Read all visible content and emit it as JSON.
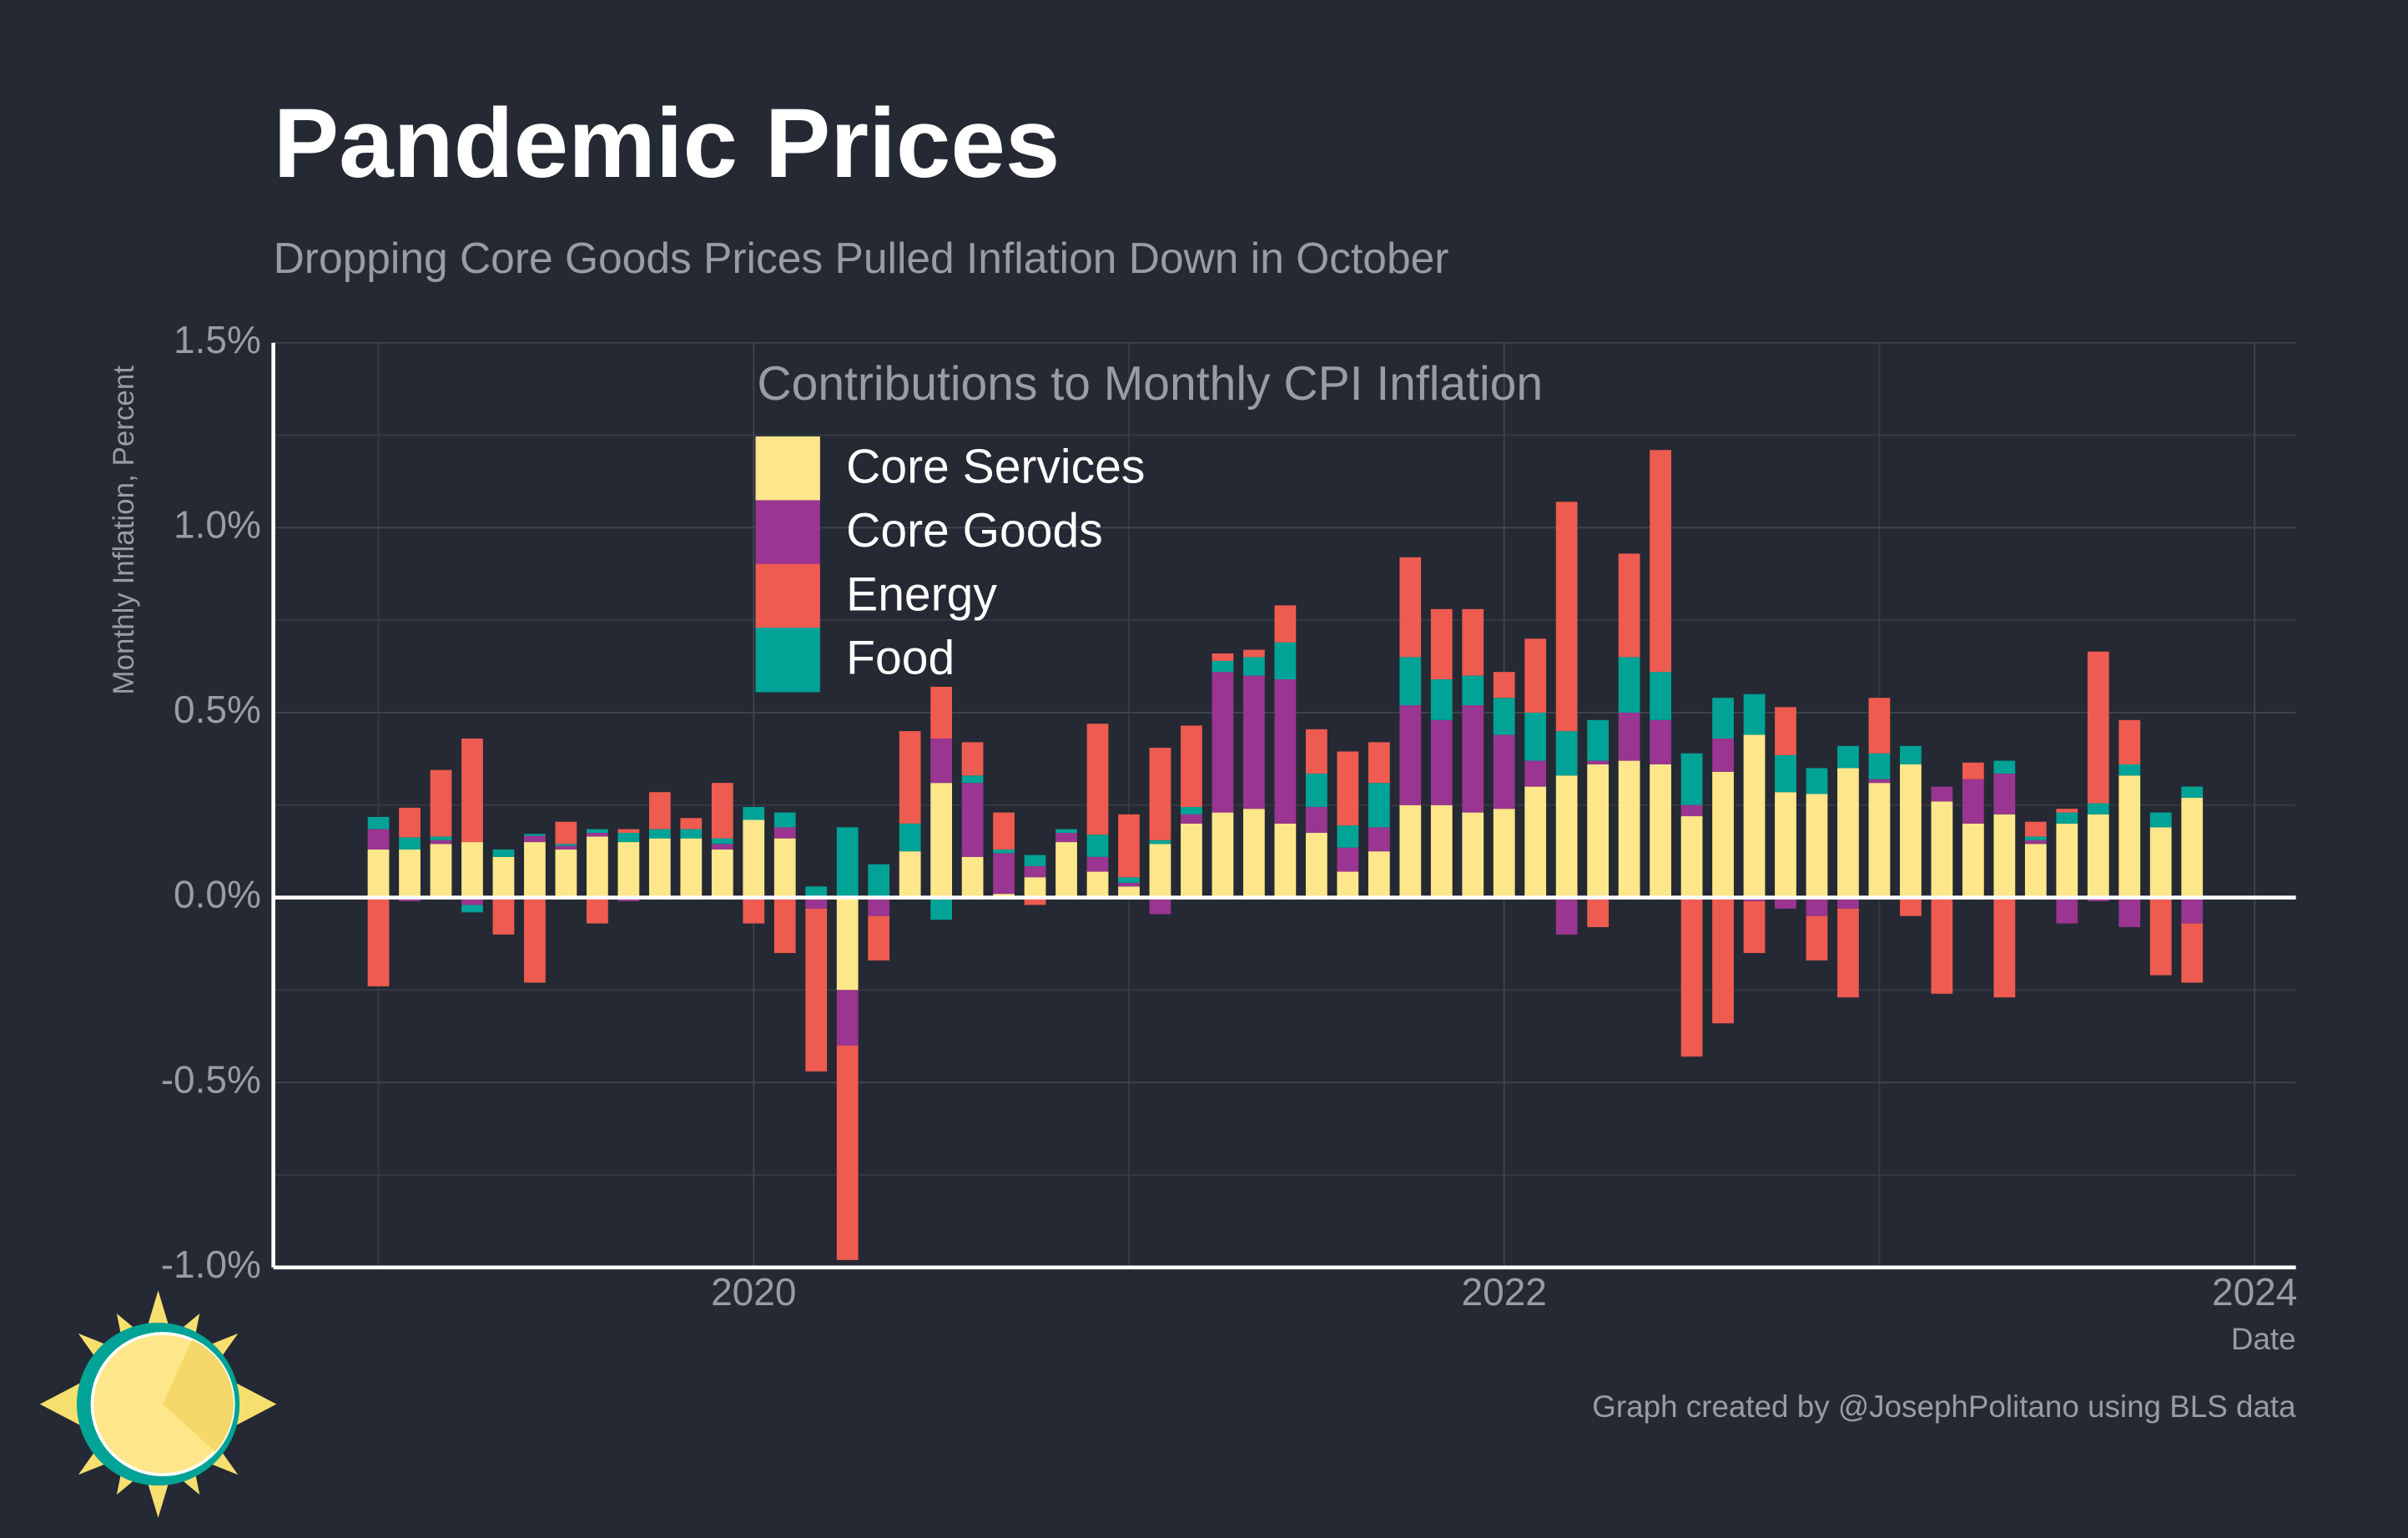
{
  "chart_data": {
    "type": "stacked_bar",
    "title": "Pandemic Prices",
    "subtitle": "Dropping Core Goods Prices Pulled Inflation Down in October",
    "legend_title": "Contributions to Monthly CPI Inflation",
    "y_label": "Monthly Inflation, Percent",
    "x_label": "Date",
    "caption": "Graph created by @JosephPolitano using BLS data",
    "x": [
      "2019-01",
      "2019-02",
      "2019-03",
      "2019-04",
      "2019-05",
      "2019-06",
      "2019-07",
      "2019-08",
      "2019-09",
      "2019-10",
      "2019-11",
      "2019-12",
      "2020-01",
      "2020-02",
      "2020-03",
      "2020-04",
      "2020-05",
      "2020-06",
      "2020-07",
      "2020-08",
      "2020-09",
      "2020-10",
      "2020-11",
      "2020-12",
      "2021-01",
      "2021-02",
      "2021-03",
      "2021-04",
      "2021-05",
      "2021-06",
      "2021-07",
      "2021-08",
      "2021-09",
      "2021-10",
      "2021-11",
      "2021-12",
      "2022-01",
      "2022-02",
      "2022-03",
      "2022-04",
      "2022-05",
      "2022-06",
      "2022-07",
      "2022-08",
      "2022-09",
      "2022-10",
      "2022-11",
      "2022-12",
      "2023-01",
      "2023-02",
      "2023-03",
      "2023-04",
      "2023-05",
      "2023-06",
      "2023-07",
      "2023-08",
      "2023-09",
      "2023-10",
      "2023-11"
    ],
    "series": [
      {
        "name": "Core Services",
        "color": "#fee78a",
        "values": [
          0.13,
          0.13,
          0.145,
          0.15,
          0.11,
          0.15,
          0.13,
          0.165,
          0.15,
          0.16,
          0.16,
          0.13,
          0.21,
          0.16,
          0,
          -0.25,
          0,
          0.125,
          0.31,
          0.11,
          0.01,
          0.055,
          0.15,
          0.07,
          0.03,
          0.145,
          0.2,
          0.23,
          0.24,
          0.2,
          0.175,
          0.07,
          0.125,
          0.25,
          0.25,
          0.23,
          0.24,
          0.3,
          0.33,
          0.36,
          0.37,
          0.36,
          0.22,
          0.34,
          0.44,
          0.285,
          0.28,
          0.35,
          0.31,
          0.36,
          0.26,
          0.2,
          0.225,
          0.145,
          0.2,
          0.225,
          0.33,
          0.19,
          0.27
        ]
      },
      {
        "name": "Core Goods",
        "color": "#9a3591",
        "values": [
          0.055,
          -0.01,
          0.01,
          -0.02,
          0,
          0.017,
          0.01,
          0.01,
          -0.01,
          0,
          -0.005,
          0.015,
          0,
          0.03,
          -0.03,
          -0.15,
          -0.05,
          0,
          0.12,
          0.2,
          0.11,
          0.03,
          0.025,
          0.04,
          0.01,
          -0.045,
          0.025,
          0.38,
          0.36,
          0.39,
          0.07,
          0.065,
          0.065,
          0.27,
          0.23,
          0.29,
          0.2,
          0.07,
          -0.1,
          0.01,
          0.13,
          0.12,
          0.03,
          0.09,
          -0.01,
          -0.03,
          -0.05,
          -0.03,
          0.01,
          0,
          0.04,
          0.12,
          0.11,
          0.01,
          -0.07,
          -0.01,
          -0.08,
          0,
          -0.07
        ]
      },
      {
        "name": "Energy",
        "color": "#ee5b50",
        "values": [
          -0.24,
          0.08,
          0.18,
          0.28,
          -0.1,
          -0.23,
          0.06,
          -0.07,
          0.01,
          0.1,
          0.03,
          0.15,
          -0.07,
          -0.15,
          -0.44,
          -0.58,
          -0.12,
          0.25,
          0.14,
          0.09,
          0.1,
          -0.02,
          0,
          0.3,
          0.17,
          0.25,
          0.22,
          0.02,
          0.02,
          0.1,
          0.12,
          0.2,
          0.11,
          0.27,
          0.19,
          0.18,
          0.07,
          0.2,
          0.62,
          -0.08,
          0.28,
          0.6,
          -0.43,
          -0.34,
          -0.14,
          0.13,
          -0.12,
          -0.24,
          0.15,
          -0.05,
          -0.26,
          0.045,
          -0.27,
          0.04,
          0.01,
          0.41,
          0.12,
          -0.21,
          -0.16
        ]
      },
      {
        "name": "Food",
        "color": "#00a396",
        "values": [
          0.033,
          0.033,
          0.01,
          -0.02,
          0.02,
          0.005,
          0.005,
          0.01,
          0.025,
          0.025,
          0.025,
          0.015,
          0.035,
          0.04,
          0.03,
          0.19,
          0.09,
          0.075,
          -0.06,
          0.02,
          0.01,
          0.03,
          0.01,
          0.06,
          0.015,
          0.01,
          0.02,
          0.03,
          0.05,
          0.1,
          0.09,
          0.06,
          0.12,
          0.13,
          0.11,
          0.08,
          0.1,
          0.13,
          0.12,
          0.11,
          0.15,
          0.13,
          0.14,
          0.11,
          0.11,
          0.1,
          0.07,
          0.06,
          0.07,
          0.05,
          0,
          0,
          0.035,
          0.01,
          0.03,
          0.03,
          0.03,
          0.04,
          0.03
        ]
      }
    ],
    "xlim": [
      2018.72,
      2024.11
    ],
    "xticks": [
      2020,
      2022,
      2024
    ],
    "xminor": [
      2019,
      2021,
      2023
    ],
    "ylim": [
      -1,
      1.5
    ],
    "yticks": [
      {
        "value": -1,
        "label": "-1.0%"
      },
      {
        "value": -0.5,
        "label": "-0.5%"
      },
      {
        "value": 0,
        "label": "0.0%"
      },
      {
        "value": 0.5,
        "label": "0.5%"
      },
      {
        "value": 1,
        "label": "1.0%"
      },
      {
        "value": 1.5,
        "label": "1.5%"
      }
    ],
    "yminor": [
      -0.75,
      -0.25,
      0.25,
      0.75,
      1.25
    ],
    "grid": true
  }
}
